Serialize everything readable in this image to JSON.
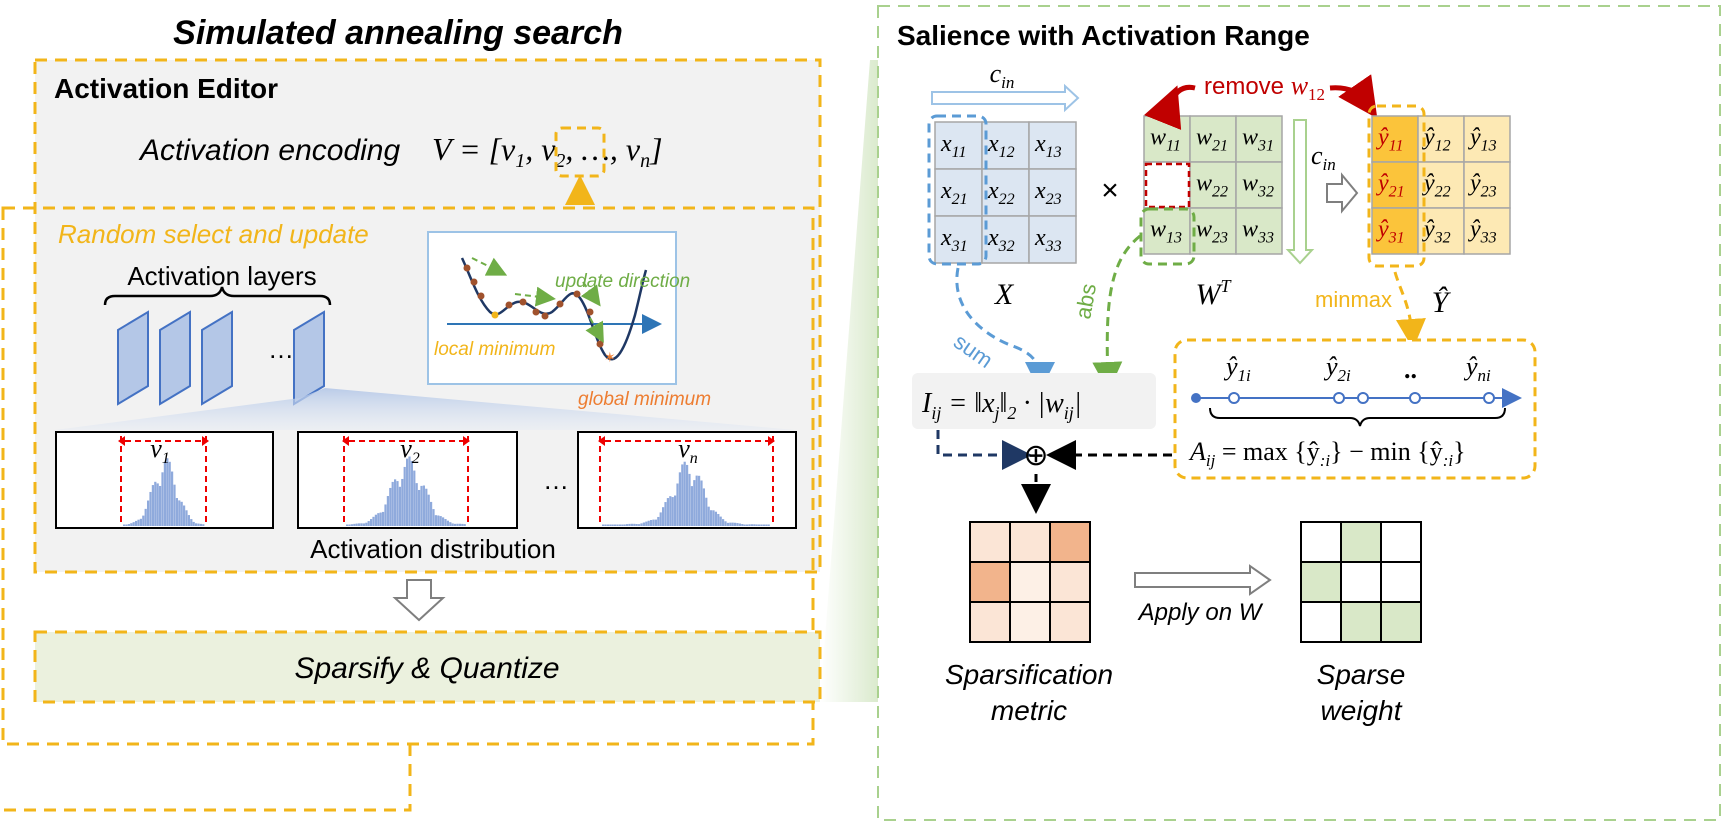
{
  "left": {
    "title": "Simulated annealing search",
    "editor_title": "Activation Editor",
    "encoding_label": "Activation encoding",
    "encoding_formula": {
      "prefix": "V = [v",
      "sub1": "1",
      "mid1": ", ",
      "v2": "v",
      "sub2": "2",
      "mid2": ", …, v",
      "subn": "n",
      "suffix": "]"
    },
    "random_select": "Random select and update",
    "layers_label": "Activation layers",
    "ellipsis": "…",
    "curve": {
      "update_direction": "update direction",
      "local_minimum": "local minimum",
      "global_minimum": "global minimum"
    },
    "histograms": [
      {
        "var": "v",
        "sub": "1"
      },
      {
        "var": "v",
        "sub": "2"
      },
      {
        "var": "v",
        "sub": "n"
      }
    ],
    "distribution_label": "Activation distribution",
    "sparsify_label": "Sparsify & Quantize"
  },
  "right": {
    "title": "Salience with Activation Range",
    "cin": {
      "var": "c",
      "sub": "in"
    },
    "times": "×",
    "remove": {
      "text": "remove ",
      "var": "w",
      "sub": "12"
    },
    "x_matrix": [
      [
        "11",
        "12",
        "13"
      ],
      [
        "21",
        "22",
        "23"
      ],
      [
        "31",
        "32",
        "33"
      ]
    ],
    "x_var": "x",
    "w_matrix": [
      [
        "11",
        "21",
        "31"
      ],
      [
        "",
        "22",
        "32"
      ],
      [
        "13",
        "23",
        "33"
      ]
    ],
    "w_var": "w",
    "y_matrix": [
      [
        "11",
        "12",
        "13"
      ],
      [
        "21",
        "22",
        "23"
      ],
      [
        "31",
        "32",
        "33"
      ]
    ],
    "y_var": "ŷ",
    "X_label": "X",
    "W_label": {
      "var": "W",
      "sup": "T"
    },
    "Y_label": "Ŷ",
    "sum_label": "sum",
    "abs_label": "abs",
    "minmax_label": "minmax",
    "importance_formula": {
      "lhs": "I",
      "lhs_sub": "ij",
      "eq": " = ‖x",
      "x_sub": "j",
      "norm_sub": "2",
      "rest": " · |w",
      "w_sub": "ij",
      "close": "|"
    },
    "range_points": [
      {
        "var": "ŷ",
        "sub": "1i"
      },
      {
        "var": "ŷ",
        "sub": "2i"
      },
      {
        "var": "..",
        "sub": ""
      },
      {
        "var": "ŷ",
        "sub": "ni"
      }
    ],
    "range_formula": {
      "lhs": "A",
      "lhs_sub": "ij",
      "mid": " = max {ŷ",
      "s1": ":i",
      "mid2": "} − min {ŷ",
      "s2": ":i",
      "close": "}"
    },
    "oplus": "⊕",
    "apply_label": "Apply on W",
    "sparsification_label": [
      "Sparsification",
      "metric"
    ],
    "sparse_weight_label": [
      "Sparse",
      "weight"
    ],
    "metric_grid": [
      [
        1,
        1,
        2
      ],
      [
        2,
        0,
        1
      ],
      [
        1,
        0,
        1
      ]
    ],
    "sparse_grid": [
      [
        0,
        1,
        0
      ],
      [
        1,
        0,
        0
      ],
      [
        0,
        1,
        1
      ]
    ]
  },
  "colors": {
    "orange_dash": "#f2b51a",
    "orange_text": "#f2b51a",
    "green": "#6fad46",
    "blue": "#4472c4",
    "light_blue": "#5b9bd5",
    "red": "#c00000",
    "navy": "#1f3864",
    "x_fill": "#dce6f2",
    "w_fill": "#d9e8c8",
    "y_fill": "#fde9b4",
    "y_dark": "#fbc43b",
    "global_min": "#ed7d31",
    "metric_light": "#fbe5d6",
    "metric_dark": "#f2b48c",
    "sparse_fill": "#d9e8c8"
  }
}
